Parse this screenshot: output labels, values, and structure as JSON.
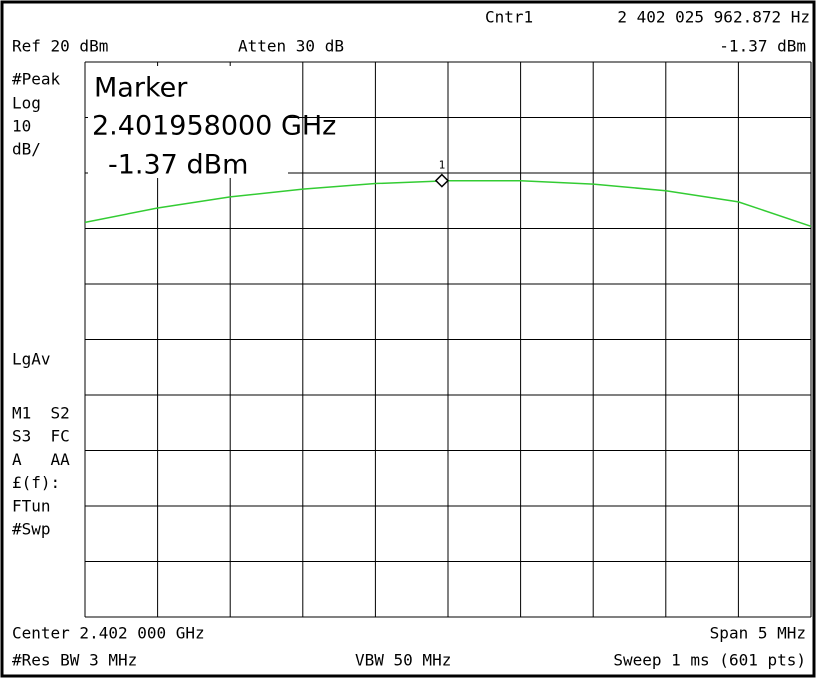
{
  "header": {
    "center_label": "Cntr1",
    "center_freq": "2 402 025 962.872 Hz",
    "ref_level": "Ref 20 dBm",
    "attenuation": "Atten 30 dB",
    "marker_amplitude": "-1.37 dBm"
  },
  "left_panel": {
    "detector": "#Peak",
    "scale_type": "Log",
    "scale_value": "10",
    "scale_unit": "dB/",
    "averaging": "LgAv",
    "status": [
      "M1  S2",
      "S3  FC",
      "A   AA",
      "£(f):",
      "FTun",
      "#Swp"
    ]
  },
  "marker_box": {
    "title": "Marker",
    "frequency": "2.401958000 GHz",
    "amplitude": "-1.37 dBm"
  },
  "footer": {
    "center": "Center 2.402 000 GHz",
    "span": "Span 5 MHz",
    "res_bw": "#Res BW 3 MHz",
    "vbw": "VBW 50 MHz",
    "sweep": "Sweep 1 ms (601 pts)"
  },
  "chart_data": {
    "type": "line",
    "xlim": [
      2399.5,
      2404.5
    ],
    "ylim": [
      -80,
      20
    ],
    "xticks": [
      2399.5,
      2400,
      2400.5,
      2401,
      2401.5,
      2402,
      2402.5,
      2403,
      2403.5,
      2404,
      2404.5
    ],
    "yticks": [
      -80,
      -70,
      -60,
      -50,
      -40,
      -30,
      -20,
      -10,
      0,
      10,
      20
    ],
    "grid": true,
    "x": [
      2399.5,
      2400,
      2400.5,
      2401,
      2401.5,
      2402,
      2402.5,
      2403,
      2403.5,
      2404,
      2404.5
    ],
    "series": [
      {
        "color": "#33cc33",
        "values": [
          -8.9,
          -6.3,
          -4.3,
          -2.9,
          -1.9,
          -1.4,
          -1.4,
          -2.0,
          -3.2,
          -5.2,
          -9.6
        ]
      }
    ],
    "marker": {
      "x": 2401.958,
      "y": -1.37,
      "label": "1"
    }
  }
}
